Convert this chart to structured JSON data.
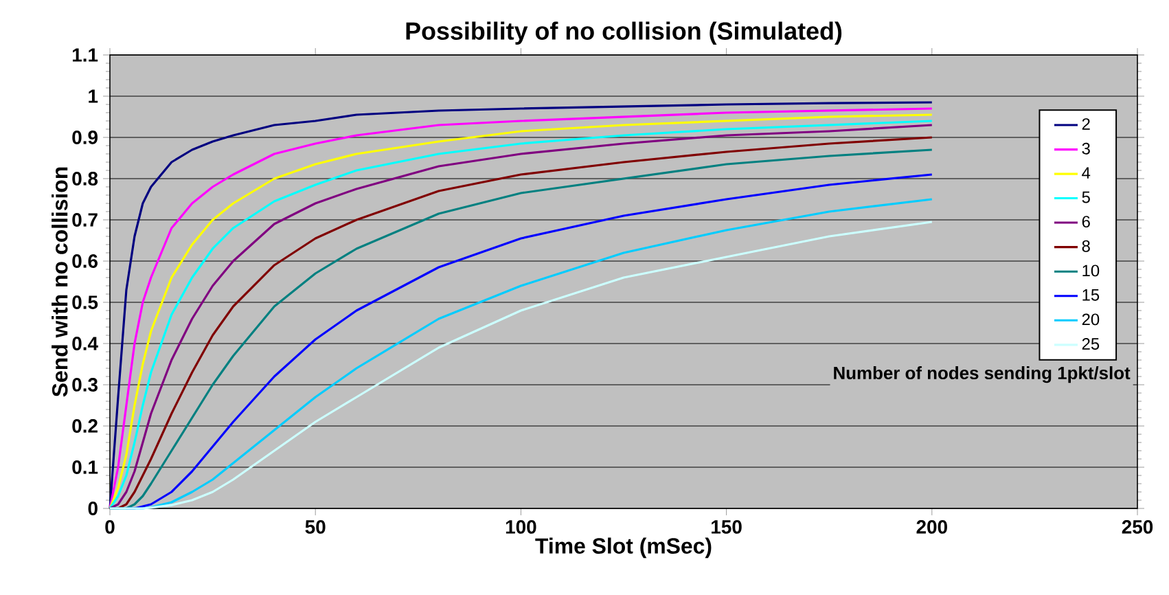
{
  "chart_data": {
    "type": "line",
    "title": "Possibility of no collision (Simulated)",
    "xlabel": "Time Slot (mSec)",
    "ylabel": "Send with no collision",
    "legend_title": "Number of nodes sending 1pkt/slot",
    "x": [
      0,
      2,
      4,
      6,
      8,
      10,
      15,
      20,
      25,
      30,
      40,
      50,
      60,
      80,
      100,
      125,
      150,
      175,
      200
    ],
    "series": [
      {
        "name": "2",
        "color": "#000080",
        "values": [
          0,
          0.27,
          0.53,
          0.66,
          0.74,
          0.78,
          0.84,
          0.87,
          0.89,
          0.905,
          0.93,
          0.94,
          0.955,
          0.965,
          0.97,
          0.975,
          0.98,
          0.983,
          0.985
        ]
      },
      {
        "name": "3",
        "color": "#ff00ff",
        "values": [
          0,
          0.1,
          0.25,
          0.4,
          0.5,
          0.56,
          0.68,
          0.74,
          0.78,
          0.81,
          0.86,
          0.885,
          0.905,
          0.93,
          0.94,
          0.95,
          0.96,
          0.965,
          0.97
        ]
      },
      {
        "name": "4",
        "color": "#ffff00",
        "values": [
          0,
          0.05,
          0.13,
          0.25,
          0.35,
          0.43,
          0.56,
          0.64,
          0.7,
          0.74,
          0.8,
          0.835,
          0.86,
          0.89,
          0.915,
          0.93,
          0.94,
          0.95,
          0.955
        ]
      },
      {
        "name": "5",
        "color": "#00ffff",
        "values": [
          0,
          0.03,
          0.08,
          0.16,
          0.25,
          0.33,
          0.47,
          0.56,
          0.63,
          0.68,
          0.745,
          0.785,
          0.82,
          0.86,
          0.885,
          0.905,
          0.92,
          0.93,
          0.94
        ]
      },
      {
        "name": "6",
        "color": "#800080",
        "values": [
          0,
          0.01,
          0.04,
          0.09,
          0.16,
          0.23,
          0.36,
          0.46,
          0.54,
          0.6,
          0.69,
          0.74,
          0.775,
          0.83,
          0.86,
          0.885,
          0.905,
          0.915,
          0.93
        ]
      },
      {
        "name": "8",
        "color": "#800000",
        "values": [
          0,
          0,
          0.01,
          0.04,
          0.08,
          0.12,
          0.23,
          0.33,
          0.42,
          0.49,
          0.59,
          0.655,
          0.7,
          0.77,
          0.81,
          0.84,
          0.865,
          0.885,
          0.9
        ]
      },
      {
        "name": "10",
        "color": "#008080",
        "values": [
          0,
          0,
          0,
          0.01,
          0.03,
          0.06,
          0.14,
          0.22,
          0.3,
          0.37,
          0.49,
          0.57,
          0.63,
          0.715,
          0.765,
          0.8,
          0.835,
          0.855,
          0.87
        ]
      },
      {
        "name": "15",
        "color": "#0000ff",
        "values": [
          null,
          null,
          0,
          0,
          0.005,
          0.01,
          0.04,
          0.09,
          0.15,
          0.21,
          0.32,
          0.41,
          0.48,
          0.585,
          0.655,
          0.71,
          0.75,
          0.785,
          0.81
        ]
      },
      {
        "name": "20",
        "color": "#00ccff",
        "values": [
          0,
          0,
          0,
          0,
          0,
          0.003,
          0.015,
          0.04,
          0.07,
          0.11,
          0.19,
          0.27,
          0.34,
          0.46,
          0.54,
          0.62,
          0.675,
          0.72,
          0.75
        ]
      },
      {
        "name": "25",
        "color": "#ccffff",
        "values": [
          0,
          0,
          0,
          0,
          0,
          0.002,
          0.008,
          0.02,
          0.04,
          0.07,
          0.14,
          0.21,
          0.27,
          0.39,
          0.48,
          0.56,
          0.61,
          0.66,
          0.695
        ]
      }
    ],
    "xlim": [
      0,
      250
    ],
    "ylim": [
      0,
      1.1
    ],
    "xticks": [
      0,
      50,
      100,
      150,
      200,
      250
    ],
    "yticks": [
      0,
      0.1,
      0.2,
      0.3,
      0.4,
      0.5,
      0.6,
      0.7,
      0.8,
      0.9,
      1,
      1.1
    ],
    "grid": "y",
    "legend": "right",
    "marker": "none",
    "line_style": "solid"
  }
}
